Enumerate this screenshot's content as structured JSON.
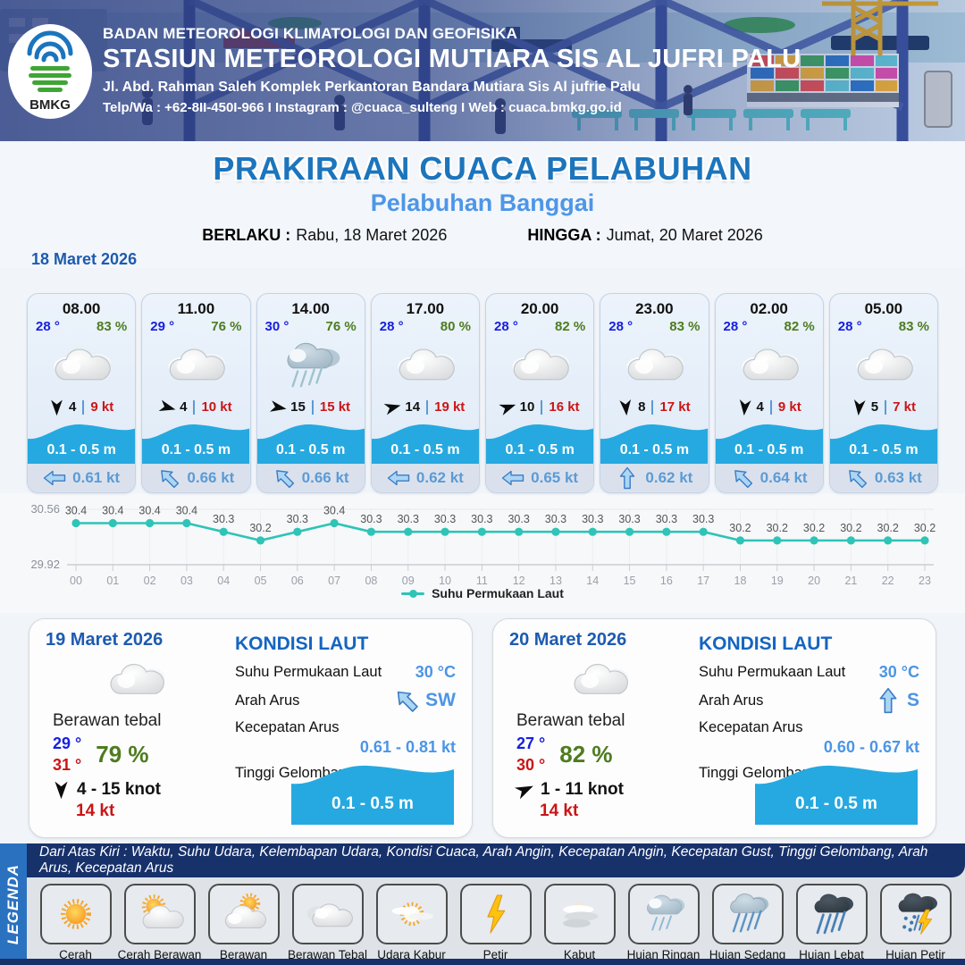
{
  "header": {
    "agency": "BADAN METEOROLOGI KLIMATOLOGI DAN GEOFISIKA",
    "station": "STASIUN METEOROLOGI MUTIARA SIS AL JUFRI PALU",
    "address": "Jl. Abd. Rahman Saleh Komplek Perkantoran Bandara Mutiara Sis Al jufrie Palu",
    "contact": "Telp/Wa : +62-8II-450I-966  I  Instagram : @cuaca_sulteng  I  Web : cuaca.bmkg.go.id",
    "logo": "BMKG"
  },
  "title": {
    "main": "PRAKIRAAN CUACA PELABUHAN",
    "sub": "Pelabuhan Banggai",
    "berlaku_label": "BERLAKU :",
    "berlaku_value": "Rabu, 18 Maret 2026",
    "hingga_label": "HINGGA :",
    "hingga_value": "Jumat, 20 Maret 2026"
  },
  "day1": {
    "date": "18 Maret 2026",
    "cards": [
      {
        "time": "08.00",
        "temp": "28 °",
        "rh": "83 %",
        "wind": "4",
        "gust": "9 kt",
        "wave": "0.1 - 0.5 m",
        "current": "0.61 kt",
        "wind_deg": 180,
        "cur_deg": 0,
        "weather": "Berawan"
      },
      {
        "time": "11.00",
        "temp": "29 °",
        "rh": "76 %",
        "wind": "4",
        "gust": "10 kt",
        "wave": "0.1 - 0.5 m",
        "current": "0.66 kt",
        "wind_deg": 105,
        "cur_deg": 45,
        "weather": "Berawan"
      },
      {
        "time": "14.00",
        "temp": "30 °",
        "rh": "76 %",
        "wind": "15",
        "gust": "15 kt",
        "wave": "0.1 - 0.5 m",
        "current": "0.66 kt",
        "wind_deg": 100,
        "cur_deg": 45,
        "weather": "Hujan Ringan"
      },
      {
        "time": "17.00",
        "temp": "28 °",
        "rh": "80 %",
        "wind": "14",
        "gust": "19 kt",
        "wave": "0.1 - 0.5 m",
        "current": "0.62 kt",
        "wind_deg": 75,
        "cur_deg": 0,
        "weather": "Berawan"
      },
      {
        "time": "20.00",
        "temp": "28 °",
        "rh": "82 %",
        "wind": "10",
        "gust": "16 kt",
        "wave": "0.1 - 0.5 m",
        "current": "0.65 kt",
        "wind_deg": 70,
        "cur_deg": 0,
        "weather": "Berawan"
      },
      {
        "time": "23.00",
        "temp": "28 °",
        "rh": "83 %",
        "wind": "8",
        "gust": "17 kt",
        "wave": "0.1 - 0.5 m",
        "current": "0.62 kt",
        "wind_deg": 175,
        "cur_deg": 90,
        "weather": "Berawan"
      },
      {
        "time": "02.00",
        "temp": "28 °",
        "rh": "82 %",
        "wind": "4",
        "gust": "9 kt",
        "wave": "0.1 - 0.5 m",
        "current": "0.64 kt",
        "wind_deg": 185,
        "cur_deg": 45,
        "weather": "Berawan"
      },
      {
        "time": "05.00",
        "temp": "28 °",
        "rh": "83 %",
        "wind": "5",
        "gust": "7 kt",
        "wave": "0.1 - 0.5 m",
        "current": "0.63 kt",
        "wind_deg": 185,
        "cur_deg": 45,
        "weather": "Berawan"
      }
    ]
  },
  "chart_data": {
    "type": "line",
    "x": [
      "00",
      "01",
      "02",
      "03",
      "04",
      "05",
      "06",
      "07",
      "08",
      "09",
      "10",
      "11",
      "12",
      "13",
      "14",
      "15",
      "16",
      "17",
      "18",
      "19",
      "20",
      "21",
      "22",
      "23"
    ],
    "series": [
      {
        "name": "Suhu Permukaan Laut",
        "color": "#2ec4b6",
        "values": [
          30.4,
          30.4,
          30.4,
          30.4,
          30.3,
          30.2,
          30.3,
          30.4,
          30.3,
          30.3,
          30.3,
          30.3,
          30.3,
          30.3,
          30.3,
          30.3,
          30.3,
          30.3,
          30.2,
          30.2,
          30.2,
          30.2,
          30.2,
          30.2
        ]
      }
    ],
    "ylim": [
      29.92,
      30.56
    ],
    "y_ticks": [
      "30.56",
      "29.92"
    ],
    "grid": true,
    "legend_position": "bottom"
  },
  "daily": [
    {
      "date": "19 Maret 2026",
      "condition": "Berawan tebal",
      "tmin": "29 °",
      "tmax": "31 °",
      "rh": "79 %",
      "wind_range": "4  - 15 knot",
      "gust": "14 kt",
      "wind_deg": 180,
      "sea": {
        "heading": "KONDISI LAUT",
        "sst_label": "Suhu Permukaan Laut",
        "sst": "30 °C",
        "dir_label": "Arah Arus",
        "dir": "SW",
        "dir_deg": 45,
        "spd_label": "Kecepatan Arus",
        "spd": "0.61  - 0.81 kt",
        "wave_label": "Tinggi Gelombang",
        "wave": "0.1 - 0.5 m"
      }
    },
    {
      "date": "20 Maret 2026",
      "condition": "Berawan tebal",
      "tmin": "27 °",
      "tmax": "30 °",
      "rh": "82 %",
      "wind_range": "1  - 11 knot",
      "gust": "14 kt",
      "wind_deg": 65,
      "sea": {
        "heading": "KONDISI LAUT",
        "sst_label": "Suhu Permukaan Laut",
        "sst": "30 °C",
        "dir_label": "Arah Arus",
        "dir": "S",
        "dir_deg": 90,
        "spd_label": "Kecepatan Arus",
        "spd": "0.60 - 0.67 kt",
        "wave_label": "Tinggi Gelombang",
        "wave": "0.1 - 0.5 m"
      }
    }
  ],
  "legend": {
    "tab": "LEGENDA",
    "note": "Dari Atas Kiri : Waktu, Suhu Udara, Kelembapan Udara, Kondisi Cuaca, Arah Angin, Kecepatan Angin, Kecepatan Gust, Tinggi Gelombang, Arah Arus, Kecepatan Arus",
    "items": [
      {
        "label": "Cerah"
      },
      {
        "label": "Cerah Berawan"
      },
      {
        "label": "Berawan"
      },
      {
        "label": "Berawan Tebal"
      },
      {
        "label": "Udara Kabur"
      },
      {
        "label": "Petir"
      },
      {
        "label": "Kabut"
      },
      {
        "label": "Hujan Ringan"
      },
      {
        "label": "Hujan Sedang"
      },
      {
        "label": "Hujan Lebat"
      },
      {
        "label": "Hujan Petir"
      }
    ]
  },
  "colors": {
    "accent_blue": "#1c75bc",
    "light_blue": "#4d96e8",
    "wave_blue": "#25a9e0",
    "teal_line": "#2ec4b6",
    "temp_blue": "#1620e0",
    "humidity_green": "#4d7c1f",
    "gust_red": "#cc1414"
  }
}
